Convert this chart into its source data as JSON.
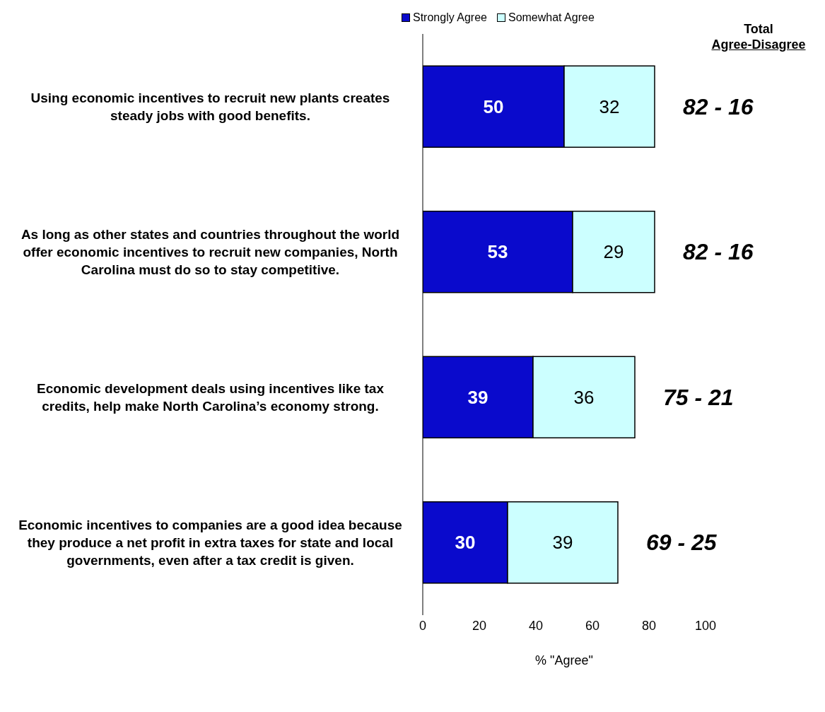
{
  "chart_data": {
    "type": "bar",
    "orientation": "horizontal",
    "stacked": true,
    "categories": [
      "Using economic incentives to recruit new plants creates steady jobs with good benefits.",
      "As long as other states and countries throughout the world offer economic incentives to recruit new companies, North Carolina must do so to stay competitive.",
      "Economic development deals using incentives like tax credits, help make North Carolina’s economy strong.",
      "Economic incentives to companies are a good idea because they produce a net profit in extra taxes for state and local governments, even after a tax credit is given."
    ],
    "series": [
      {
        "name": "Strongly Agree",
        "color": "#0a0acc",
        "values": [
          50,
          53,
          39,
          30
        ]
      },
      {
        "name": "Somewhat Agree",
        "color": "#ccffff",
        "values": [
          32,
          29,
          36,
          39
        ]
      }
    ],
    "data_labels": true,
    "totals": [
      "82 - 16",
      "82 - 16",
      "75 - 21",
      "69 - 25"
    ],
    "annotations": [
      "Total",
      "Agree-Disagree"
    ],
    "xlabel": "% \"Agree\"",
    "xlim": [
      0,
      100
    ],
    "xticks": [
      0,
      20,
      40,
      60,
      80,
      100
    ],
    "legend": "top",
    "grid": false
  }
}
